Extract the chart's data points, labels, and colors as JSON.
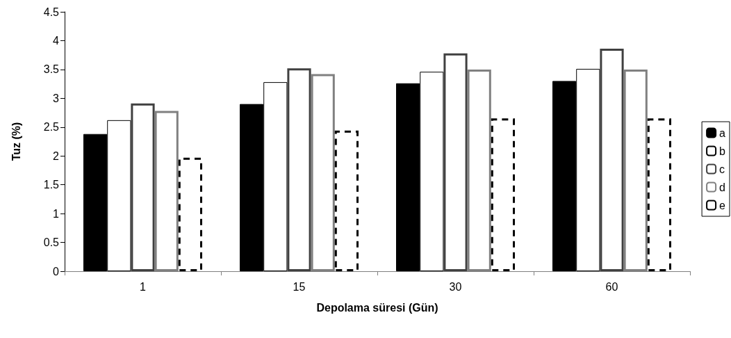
{
  "chart_data": {
    "type": "bar",
    "xlabel": "Depolama süresi (Gün)",
    "ylabel": "Tuz (%)",
    "categories": [
      "1",
      "15",
      "30",
      "60"
    ],
    "series": [
      {
        "name": "a",
        "color": "#000000",
        "values": [
          2.38,
          2.9,
          3.26,
          3.3
        ]
      },
      {
        "name": "b",
        "color": "#ffffff",
        "values": [
          2.62,
          3.28,
          3.46,
          3.51
        ]
      },
      {
        "name": "c",
        "color": "#404040",
        "line_style": "solid",
        "values": [
          2.91,
          3.52,
          3.78,
          3.86
        ]
      },
      {
        "name": "d",
        "color": "#808080",
        "line_style": "solid",
        "values": [
          2.78,
          3.42,
          3.5,
          3.5
        ]
      },
      {
        "name": "e",
        "color": "#000000",
        "line_style": "dashed",
        "values": [
          1.97,
          2.44,
          2.65,
          2.65
        ]
      }
    ],
    "ylim": [
      0,
      4.5
    ],
    "yticks": [
      0,
      0.5,
      1,
      1.5,
      2,
      2.5,
      3,
      3.5,
      4,
      4.5
    ],
    "grid": false,
    "legend": "right"
  }
}
